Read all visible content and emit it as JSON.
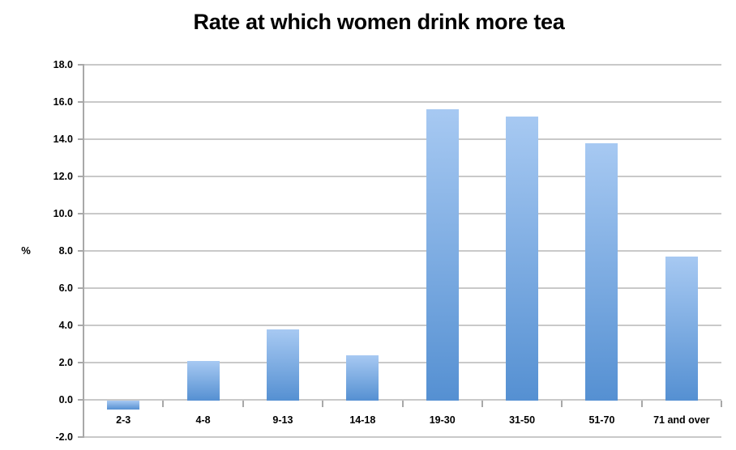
{
  "chart_data": {
    "type": "bar",
    "title": "Rate at which women drink more tea",
    "xlabel": "",
    "ylabel": "%",
    "categories": [
      "2-3",
      "4-8",
      "9-13",
      "14-18",
      "19-30",
      "31-50",
      "51-70",
      "71 and over"
    ],
    "values": [
      -0.5,
      2.1,
      3.8,
      2.4,
      15.6,
      15.2,
      13.8,
      7.7
    ],
    "ylim": [
      -2.0,
      18.0
    ],
    "ytick_step": 2.0,
    "ytick_labels": [
      "18.0",
      "16.0",
      "14.0",
      "12.0",
      "10.0",
      "8.0",
      "6.0",
      "4.0",
      "2.0",
      "0.0",
      "-2.0"
    ],
    "grid": true,
    "legend": false,
    "colors": {
      "bar_gradient_top": "#a7c9f2",
      "bar_gradient_bottom": "#5590d2",
      "gridline": "#c9c9c9",
      "axis": "#a8a8a8",
      "text": "#000000",
      "background": "#ffffff"
    }
  }
}
